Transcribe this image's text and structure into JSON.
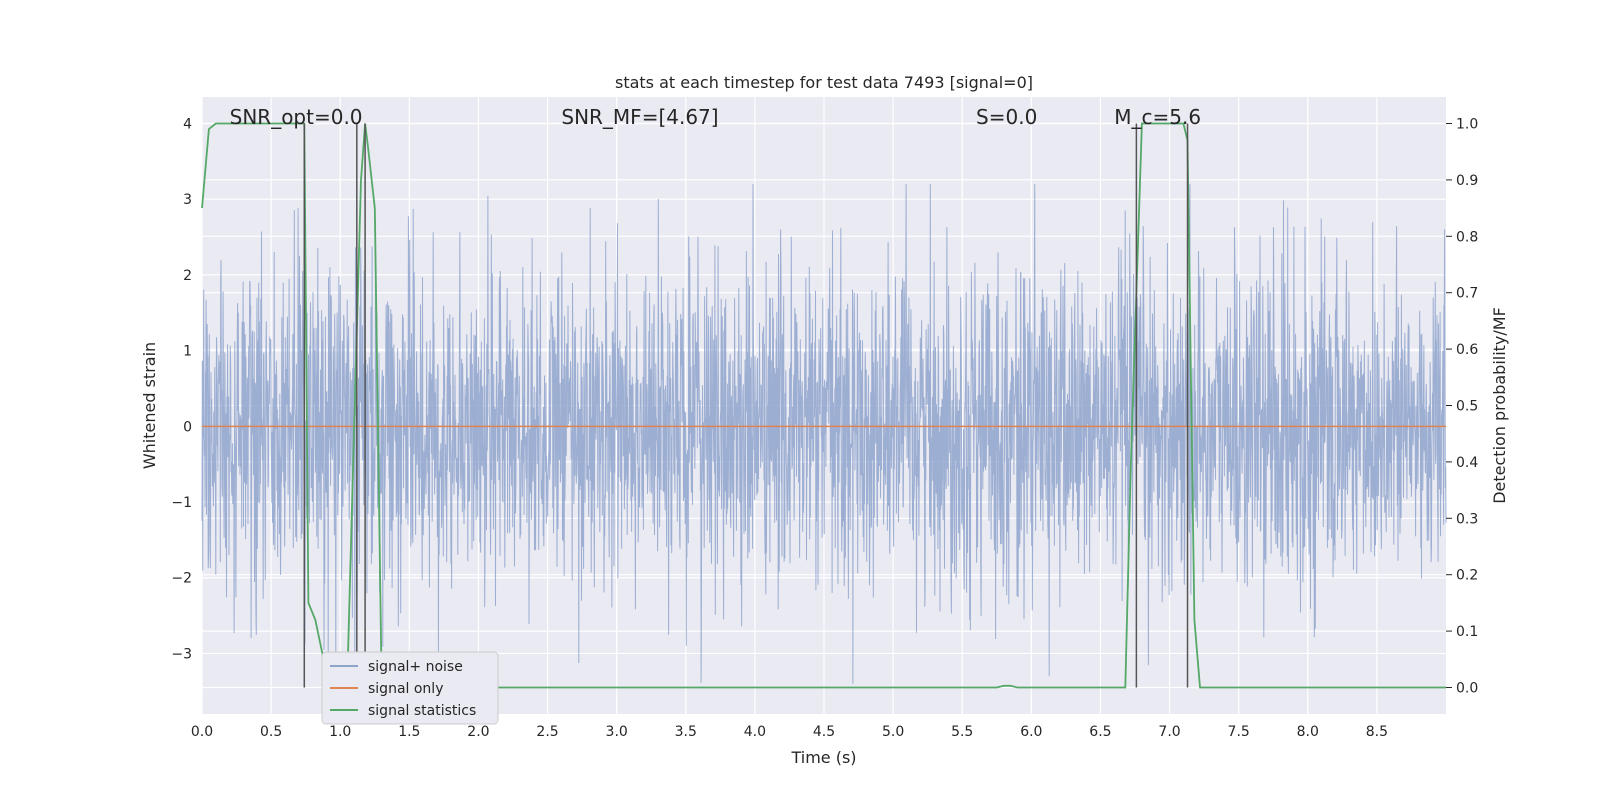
{
  "chart_data": {
    "type": "line",
    "title": "stats at each timestep for test data 7493 [signal=0]",
    "xlabel": "Time (s)",
    "ylabel": "Whitened strain",
    "ylabel_right": "Detection probability/MF",
    "xlim": [
      0.0,
      9.0
    ],
    "ylim": [
      -3.8,
      4.35
    ],
    "ylim_right": [
      -0.047,
      1.047
    ],
    "x_ticks": [
      "0.0",
      "0.5",
      "1.0",
      "1.5",
      "2.0",
      "2.5",
      "3.0",
      "3.5",
      "4.0",
      "4.5",
      "5.0",
      "5.5",
      "6.0",
      "6.5",
      "7.0",
      "7.5",
      "8.0",
      "8.5"
    ],
    "x_tick_values": [
      0.0,
      0.5,
      1.0,
      1.5,
      2.0,
      2.5,
      3.0,
      3.5,
      4.0,
      4.5,
      5.0,
      5.5,
      6.0,
      6.5,
      7.0,
      7.5,
      8.0,
      8.5
    ],
    "y_ticks": [
      "4",
      "3",
      "2",
      "1",
      "0",
      "−1",
      "−2",
      "−3"
    ],
    "y_tick_values": [
      4,
      3,
      2,
      1,
      0,
      -1,
      -2,
      -3
    ],
    "y_right_ticks": [
      "1.0",
      "0.9",
      "0.8",
      "0.7",
      "0.6",
      "0.5",
      "0.4",
      "0.3",
      "0.2",
      "0.1",
      "0.0"
    ],
    "y_right_tick_values": [
      1.0,
      0.9,
      0.8,
      0.7,
      0.6,
      0.5,
      0.4,
      0.3,
      0.2,
      0.1,
      0.0
    ],
    "grid": true,
    "legend_position": "bottom-left",
    "annotations": [
      {
        "label": "SNR_opt=0.0",
        "x": 0.2
      },
      {
        "label": "SNR_MF=[4.67]",
        "x": 2.6
      },
      {
        "label": "S=0.0",
        "x": 5.6
      },
      {
        "label": "M_c=5.6",
        "x": 6.6
      }
    ],
    "series": [
      {
        "name": "signal+ noise",
        "color": "#8ea3cc",
        "axis": "left",
        "noise_sd": 1.05,
        "peak_max": 3.2,
        "peak_min": -3.4
      },
      {
        "name": "signal only",
        "color": "#dd8452",
        "axis": "left",
        "x": [
          0.0,
          9.0
        ],
        "y": [
          0.0,
          0.0
        ]
      },
      {
        "name": "signal statistics",
        "color": "#55a868",
        "axis": "right",
        "x": [
          0.0,
          0.05,
          0.1,
          0.2,
          0.3,
          0.4,
          0.5,
          0.6,
          0.7,
          0.74,
          0.77,
          0.82,
          0.88,
          0.95,
          1.0,
          1.05,
          1.1,
          1.15,
          1.18,
          1.2,
          1.25,
          1.3,
          1.35,
          1.4,
          1.5,
          2.0,
          3.0,
          4.0,
          5.0,
          5.5,
          5.75,
          5.8,
          5.85,
          5.9,
          6.0,
          6.5,
          6.68,
          6.72,
          6.76,
          6.8,
          6.9,
          7.0,
          7.05,
          7.1,
          7.13,
          7.18,
          7.22,
          7.26,
          8.0,
          9.0
        ],
        "y": [
          0.85,
          0.99,
          1.0,
          1.0,
          1.0,
          1.0,
          1.0,
          1.0,
          1.0,
          1.0,
          0.15,
          0.12,
          0.05,
          0.0,
          0.0,
          0.0,
          0.45,
          0.9,
          1.0,
          0.96,
          0.85,
          0.0,
          0.0,
          0.0,
          0.0,
          0.0,
          0.0,
          0.0,
          0.0,
          0.0,
          0.0,
          0.003,
          0.003,
          0.0,
          0.0,
          0.0,
          0.0,
          0.4,
          0.7,
          1.0,
          1.0,
          1.0,
          1.0,
          1.0,
          0.97,
          0.12,
          0.0,
          0.0,
          0.0,
          0.0
        ]
      }
    ],
    "vlines": [
      {
        "x": 0.74,
        "ymax": 1.0
      },
      {
        "x": 1.12,
        "ymax": 1.0
      },
      {
        "x": 1.18,
        "ymax": 1.0
      },
      {
        "x": 6.76,
        "ymax": 1.0
      },
      {
        "x": 7.13,
        "ymax": 1.0
      }
    ]
  }
}
